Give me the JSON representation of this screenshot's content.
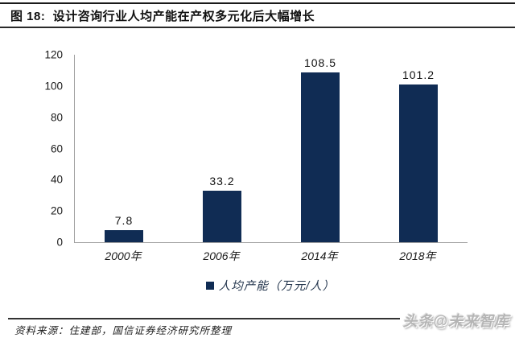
{
  "header": {
    "title": "图 18:  设计咨询行业人均产能在产权多元化后大幅增长"
  },
  "chart_data": {
    "type": "bar",
    "categories": [
      "2000年",
      "2006年",
      "2014年",
      "2018年"
    ],
    "values": [
      7.8,
      33.2,
      108.5,
      101.2
    ],
    "value_labels": [
      "7.8",
      "33.2",
      "108.5",
      "101.2"
    ],
    "title": "设计咨询行业人均产能在产权多元化后大幅增长",
    "xlabel": "",
    "ylabel": "",
    "ylim": [
      0,
      120
    ],
    "yticks": [
      0,
      20,
      40,
      60,
      80,
      100,
      120
    ],
    "grid": false,
    "legend": "人均产能（万元/人）",
    "legend_position": "bottom",
    "bar_color": "#102C54",
    "axis_color": "#a0a0a0"
  },
  "footer": {
    "source": "资料来源：住建部，国信证券经济研究所整理"
  },
  "watermark": {
    "text": "头条@未来智库"
  }
}
